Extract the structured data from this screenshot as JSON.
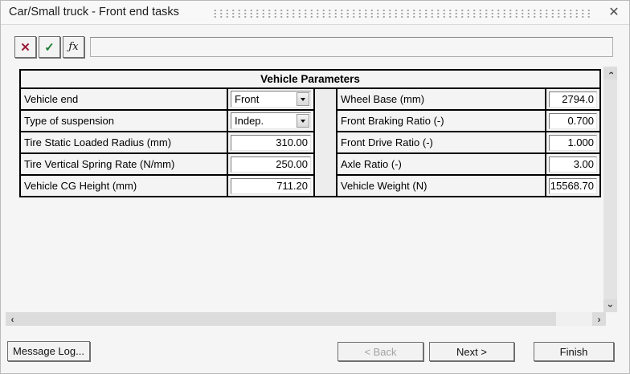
{
  "window": {
    "title": "Car/Small truck - Front end tasks"
  },
  "icons": {
    "close": "✕",
    "toolbar_cancel": "✕",
    "toolbar_accept": "✓",
    "toolbar_formula": "ƒx",
    "chevron_left": "‹",
    "chevron_right": "›",
    "chevron_vertical": "›"
  },
  "colors": {
    "cancel_icon": "#9b1c38",
    "accept_icon": "#1e7d33",
    "table_border": "#000000",
    "window_bg": "#f5f5f5"
  },
  "toolbar": {
    "expression_value": ""
  },
  "table": {
    "title": "Vehicle Parameters",
    "left": [
      {
        "label": "Vehicle end",
        "control": "dropdown",
        "value": "Front"
      },
      {
        "label": "Type of suspension",
        "control": "dropdown",
        "value": "Indep."
      },
      {
        "label": "Tire Static Loaded Radius (mm)",
        "control": "input",
        "value": "310.00"
      },
      {
        "label": "Tire Vertical Spring Rate (N/mm)",
        "control": "input",
        "value": "250.00"
      },
      {
        "label": "Vehicle CG Height (mm)",
        "control": "input",
        "value": "711.20"
      }
    ],
    "right": [
      {
        "label": "Wheel Base (mm)",
        "control": "input",
        "value": "2794.0"
      },
      {
        "label": "Front Braking Ratio (-)",
        "control": "input",
        "value": "0.700"
      },
      {
        "label": "Front Drive Ratio (-)",
        "control": "input",
        "value": "1.000"
      },
      {
        "label": "Axle Ratio (-)",
        "control": "input",
        "value": "3.00"
      },
      {
        "label": "Vehicle Weight (N)",
        "control": "input",
        "value": "15568.70"
      }
    ]
  },
  "footer": {
    "message_log_label": "Message Log...",
    "back_label": "< Back",
    "next_label": "Next >",
    "finish_label": "Finish"
  }
}
